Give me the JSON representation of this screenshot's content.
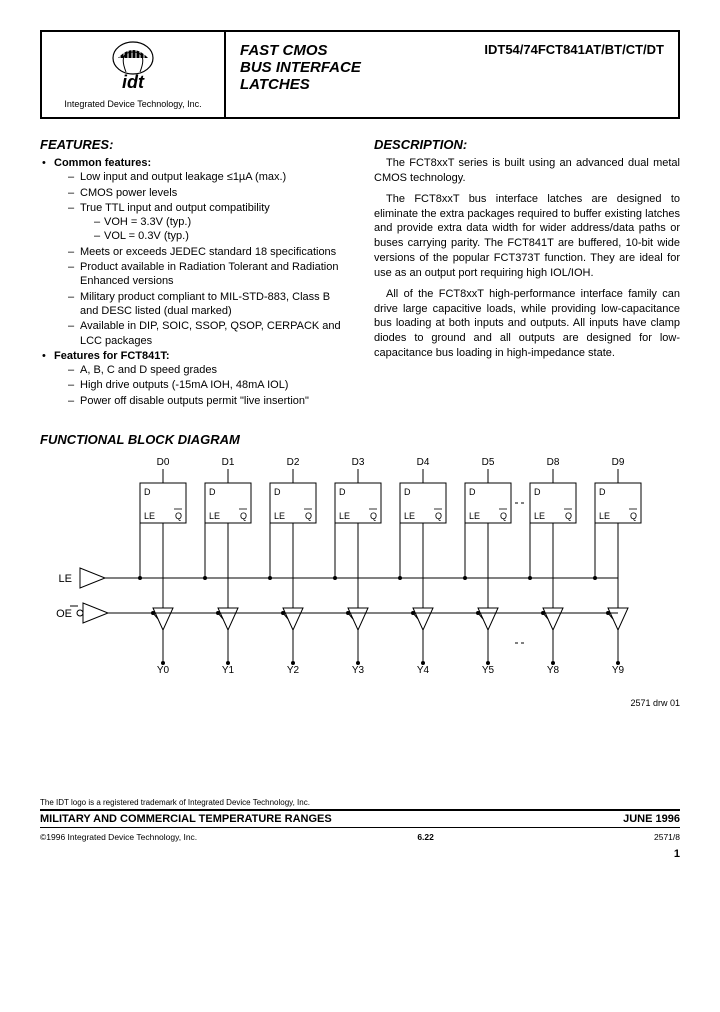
{
  "header": {
    "company": "Integrated Device Technology, Inc.",
    "title_line1": "FAST CMOS",
    "title_line2": "BUS INTERFACE",
    "title_line3": "LATCHES",
    "part_number": "IDT54/74FCT841AT/BT/CT/DT",
    "logo_text": "idt"
  },
  "features": {
    "heading": "FEATURES:",
    "groups": [
      {
        "label": "Common features:",
        "items": [
          {
            "text": "Low input and output leakage ≤1µA (max.)"
          },
          {
            "text": "CMOS power levels"
          },
          {
            "text": "True TTL input and output compatibility",
            "sub": [
              "VOH = 3.3V (typ.)",
              "VOL = 0.3V (typ.)"
            ]
          },
          {
            "text": "Meets or exceeds JEDEC standard 18 specifications"
          },
          {
            "text": "Product available in Radiation Tolerant and Radiation Enhanced versions"
          },
          {
            "text": "Military product compliant to MIL-STD-883, Class B and DESC listed (dual marked)"
          },
          {
            "text": "Available in DIP, SOIC, SSOP, QSOP, CERPACK and LCC packages"
          }
        ]
      },
      {
        "label": "Features for FCT841T:",
        "items": [
          {
            "text": "A, B, C and D speed grades"
          },
          {
            "text": "High drive outputs (-15mA IOH, 48mA IOL)"
          },
          {
            "text": "Power off disable outputs permit \"live insertion\""
          }
        ]
      }
    ]
  },
  "description": {
    "heading": "DESCRIPTION:",
    "paragraphs": [
      "The FCT8xxT series is built using an advanced dual metal CMOS technology.",
      "The FCT8xxT bus interface latches are designed to eliminate the extra packages required to buffer existing latches and provide extra data width for wider address/data paths or buses carrying parity. The FCT841T are buffered, 10-bit wide versions of the popular FCT373T function. They are ideal for use as an output port requiring high IOL/IOH.",
      "All of the FCT8xxT high-performance interface family can drive large capacitive loads, while providing low-capacitance bus loading at both inputs and outputs. All inputs have clamp diodes to ground and all outputs are designed for low-capacitance bus loading in high-impedance state."
    ]
  },
  "block_diagram": {
    "heading": "FUNCTIONAL BLOCK DIAGRAM",
    "d_labels": [
      "D0",
      "D1",
      "D2",
      "D3",
      "D4",
      "D5",
      "D8",
      "D9"
    ],
    "y_labels": [
      "Y0",
      "Y1",
      "Y2",
      "Y3",
      "Y4",
      "Y5",
      "Y8",
      "Y9"
    ],
    "le_label": "LE",
    "oe_label": "OE",
    "latch_d": "D",
    "latch_le": "LE",
    "latch_q": "Q",
    "note": "2571 drw 01",
    "colors": {
      "line": "#000000",
      "bg": "#ffffff"
    }
  },
  "footer": {
    "trademark": "The IDT logo is a registered trademark of Integrated Device Technology, Inc.",
    "bar_left": "MILITARY AND COMMERCIAL TEMPERATURE RANGES",
    "bar_right": "JUNE 1996",
    "copyright": "©1996 Integrated Device Technology, Inc.",
    "section": "6.22",
    "doc_id": "2571/8",
    "page": "1"
  }
}
